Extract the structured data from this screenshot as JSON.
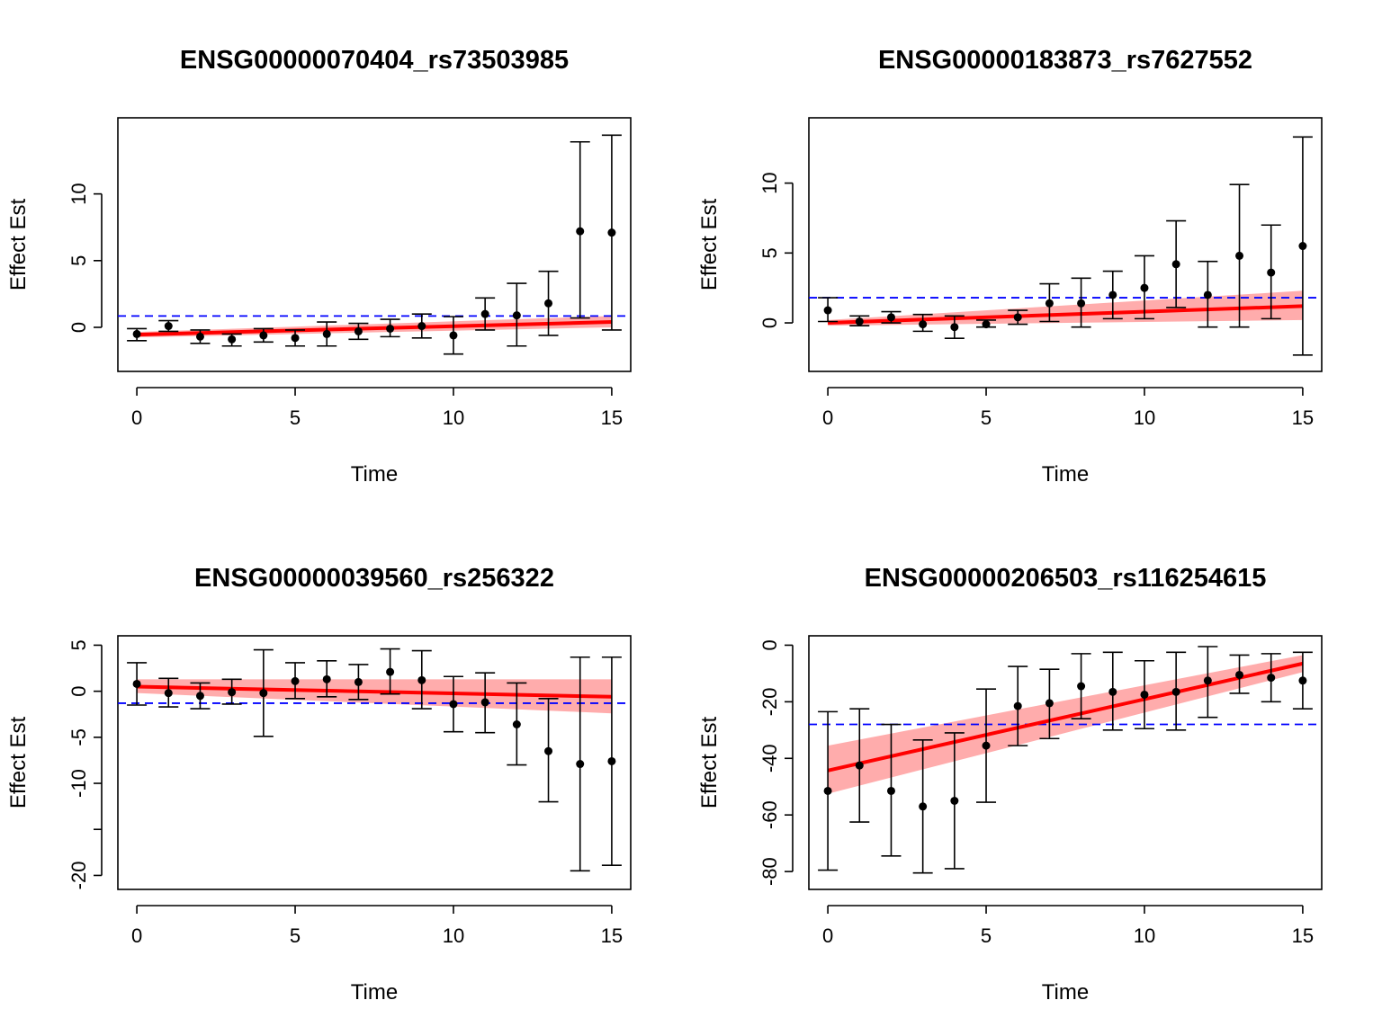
{
  "chart_data": [
    {
      "type": "scatter",
      "title": "ENSG00000070404_rs73503985",
      "xlabel": "Time",
      "ylabel": "Effect Est",
      "xlim": [
        0,
        15
      ],
      "ylim": [
        -2.6,
        15
      ],
      "xticks": [
        0,
        5,
        10,
        15
      ],
      "yticks": [
        0,
        5,
        10
      ],
      "grid": false,
      "x": [
        0,
        1,
        2,
        3,
        4,
        5,
        6,
        7,
        8,
        9,
        10,
        11,
        12,
        13,
        14,
        15
      ],
      "y": [
        -0.5,
        0.1,
        -0.7,
        -0.9,
        -0.6,
        -0.8,
        -0.5,
        -0.3,
        -0.1,
        0.1,
        -0.6,
        1.0,
        0.9,
        1.8,
        7.2,
        7.1
      ],
      "lower": [
        -1.0,
        -0.3,
        -1.2,
        -1.4,
        -1.1,
        -1.4,
        -1.4,
        -0.9,
        -0.7,
        -0.8,
        -2.0,
        -0.2,
        -1.4,
        -0.6,
        0.7,
        -0.2
      ],
      "upper": [
        -0.1,
        0.5,
        -0.2,
        -0.5,
        -0.1,
        -0.2,
        0.4,
        0.3,
        0.6,
        1.0,
        0.8,
        2.2,
        3.3,
        4.2,
        13.9,
        14.4
      ],
      "fit": {
        "start": -0.55,
        "end": 0.4,
        "band_start": [
          -0.75,
          -0.35
        ],
        "band_end": [
          0.0,
          0.85
        ]
      },
      "reference_line": 0.85
    },
    {
      "type": "scatter",
      "title": "ENSG00000183873_rs7627552",
      "xlabel": "Time",
      "ylabel": "Effect Est",
      "xlim": [
        0,
        15
      ],
      "ylim": [
        -2.8,
        14
      ],
      "xticks": [
        0,
        5,
        10,
        15
      ],
      "yticks": [
        0,
        5,
        10
      ],
      "grid": false,
      "x": [
        0,
        1,
        2,
        3,
        4,
        5,
        6,
        7,
        8,
        9,
        10,
        11,
        12,
        13,
        14,
        15
      ],
      "y": [
        0.9,
        0.1,
        0.4,
        -0.1,
        -0.3,
        -0.1,
        0.4,
        1.4,
        1.4,
        2.0,
        2.5,
        4.2,
        2.0,
        4.8,
        3.6,
        5.5
      ],
      "lower": [
        0.1,
        -0.2,
        0.0,
        -0.6,
        -1.1,
        -0.3,
        -0.1,
        0.1,
        -0.3,
        0.3,
        0.3,
        1.1,
        -0.3,
        -0.3,
        0.3,
        -2.3
      ],
      "upper": [
        1.8,
        0.5,
        0.8,
        0.6,
        0.5,
        0.2,
        0.9,
        2.8,
        3.2,
        3.7,
        4.8,
        7.3,
        4.4,
        9.9,
        7.0,
        13.3
      ],
      "fit": {
        "start": 0.0,
        "end": 1.2,
        "band_start": [
          -0.2,
          0.2
        ],
        "band_end": [
          0.2,
          2.3
        ]
      },
      "reference_line": 1.8
    },
    {
      "type": "scatter",
      "title": "ENSG00000039560_rs256322",
      "xlabel": "Time",
      "ylabel": "Effect Est",
      "xlim": [
        0,
        15
      ],
      "ylim": [
        -20.5,
        5
      ],
      "xticks": [
        0,
        5,
        10,
        15
      ],
      "yticks": [
        5,
        0,
        -5,
        -10,
        -15,
        -20
      ],
      "ytick_labels": [
        "5",
        "0",
        "-5",
        "-10",
        "",
        "-20"
      ],
      "grid": false,
      "x": [
        0,
        1,
        2,
        3,
        4,
        5,
        6,
        7,
        8,
        9,
        10,
        11,
        12,
        13,
        14,
        15
      ],
      "y": [
        0.8,
        -0.2,
        -0.5,
        -0.1,
        -0.2,
        1.1,
        1.3,
        1.0,
        2.1,
        1.2,
        -1.4,
        -1.2,
        -3.6,
        -6.5,
        -7.9,
        -7.6
      ],
      "lower": [
        -1.5,
        -1.7,
        -1.9,
        -1.4,
        -4.9,
        -0.8,
        -0.6,
        -0.9,
        -0.3,
        -1.9,
        -4.4,
        -4.5,
        -8.0,
        -12.0,
        -19.5,
        -18.9
      ],
      "upper": [
        3.1,
        1.4,
        0.9,
        1.3,
        4.5,
        3.1,
        3.3,
        2.9,
        4.6,
        4.4,
        1.6,
        2.0,
        0.9,
        -0.8,
        3.7,
        3.7
      ],
      "fit": {
        "start": 0.5,
        "end": -0.6,
        "band_start": [
          -0.2,
          1.3
        ],
        "band_end": [
          -2.4,
          1.3
        ]
      },
      "reference_line": -1.3
    },
    {
      "type": "scatter",
      "title": "ENSG00000206503_rs116254615",
      "xlabel": "Time",
      "ylabel": "Effect Est",
      "xlim": [
        0,
        15
      ],
      "ylim": [
        -83,
        0
      ],
      "xticks": [
        0,
        5,
        10,
        15
      ],
      "yticks": [
        0,
        -20,
        -40,
        -60,
        -80
      ],
      "grid": false,
      "x": [
        0,
        1,
        2,
        3,
        4,
        5,
        6,
        7,
        8,
        9,
        10,
        11,
        12,
        13,
        14,
        15
      ],
      "y": [
        -51.5,
        -42.5,
        -51.5,
        -57,
        -55,
        -35.5,
        -21.5,
        -20.5,
        -14.5,
        -16.5,
        -17.5,
        -16.5,
        -12.5,
        -10.5,
        -11.5,
        -12.5
      ],
      "lower": [
        -79.5,
        -62.5,
        -74.5,
        -80.5,
        -79,
        -55.5,
        -35.5,
        -33,
        -26,
        -30,
        -29.5,
        -30,
        -25.5,
        -17,
        -20,
        -22.5
      ],
      "upper": [
        -23.5,
        -22.5,
        -28,
        -33.5,
        -31,
        -15.5,
        -7.5,
        -8.5,
        -3,
        -2.5,
        -5.5,
        -2.5,
        -0.5,
        -3.5,
        -3,
        -2.5
      ],
      "fit": {
        "start": -44.3,
        "end": -6.5,
        "band_start": [
          -52.5,
          -35.5
        ],
        "band_end": [
          -9.5,
          -3.5
        ]
      },
      "reference_line": -28
    }
  ],
  "colors": {
    "fit_line": "#ff0000",
    "confidence_band": "#ff9d9d",
    "reference_line": "#0000ff",
    "points": "#000000"
  }
}
